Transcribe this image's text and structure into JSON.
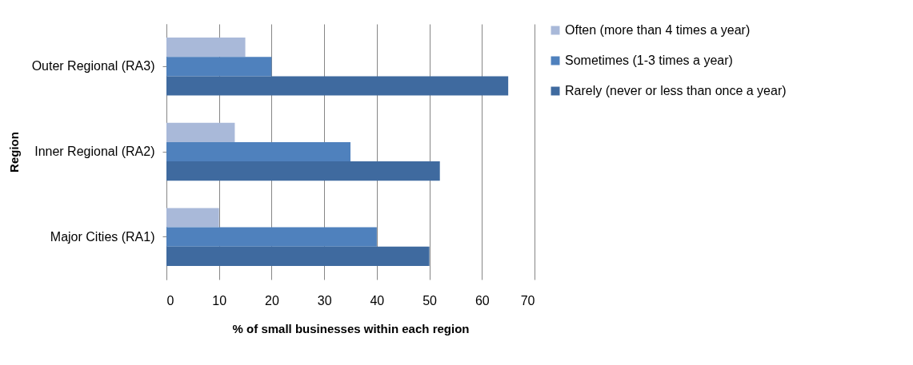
{
  "chart_data": {
    "type": "bar",
    "orientation": "horizontal",
    "xlabel": "% of small businesses within each region",
    "ylabel": "Region",
    "categories": [
      "Outer Regional (RA3)",
      "Inner Regional (RA2)",
      "Major Cities (RA1)"
    ],
    "series": [
      {
        "name": "Often (more than 4 times a year)",
        "color": "#a9b9d9",
        "values": [
          15,
          13,
          10
        ]
      },
      {
        "name": "Sometimes (1-3 times a year)",
        "color": "#4f81bd",
        "values": [
          20,
          35,
          40
        ]
      },
      {
        "name": "Rarely (never or less than once a year)",
        "color": "#3f6a9f",
        "values": [
          65,
          52,
          50
        ]
      }
    ],
    "xlim": [
      0,
      70
    ],
    "xticks": [
      0,
      10,
      20,
      30,
      40,
      50,
      60,
      70
    ],
    "grid": "x",
    "legend": "right"
  }
}
